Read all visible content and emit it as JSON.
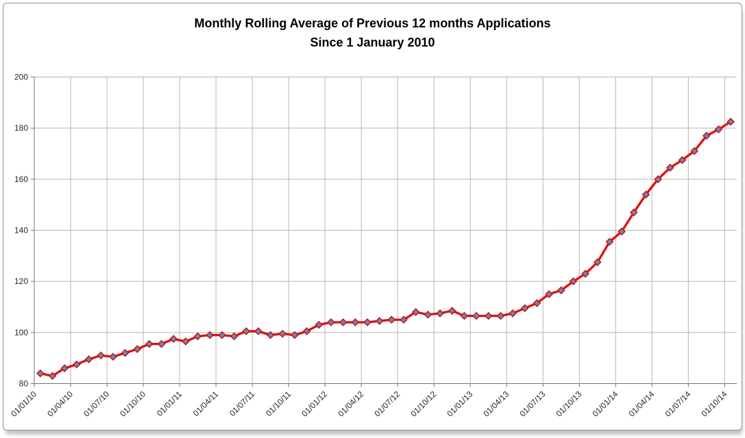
{
  "chart_data": {
    "type": "line",
    "title_line1": "Monthly Rolling Average of Previous 12 months Applications",
    "title_line2": "Since 1 January 2010",
    "categories": [
      "01/01/10",
      "01/02/10",
      "01/03/10",
      "01/04/10",
      "01/05/10",
      "01/06/10",
      "01/07/10",
      "01/08/10",
      "01/09/10",
      "01/10/10",
      "01/11/10",
      "01/12/10",
      "01/01/11",
      "01/02/11",
      "01/03/11",
      "01/04/11",
      "01/05/11",
      "01/06/11",
      "01/07/11",
      "01/08/11",
      "01/09/11",
      "01/10/11",
      "01/11/11",
      "01/12/11",
      "01/01/12",
      "01/02/12",
      "01/03/12",
      "01/04/12",
      "01/05/12",
      "01/06/12",
      "01/07/12",
      "01/08/12",
      "01/09/12",
      "01/10/12",
      "01/11/12",
      "01/12/12",
      "01/01/13",
      "01/02/13",
      "01/03/13",
      "01/04/13",
      "01/05/13",
      "01/06/13",
      "01/07/13",
      "01/08/13",
      "01/09/13",
      "01/10/13",
      "01/11/13",
      "01/12/13",
      "01/01/14",
      "01/02/14",
      "01/03/14",
      "01/04/14",
      "01/05/14",
      "01/06/14",
      "01/07/14",
      "01/08/14",
      "01/09/14",
      "01/10/14"
    ],
    "values": [
      84,
      83,
      86,
      87.5,
      89.5,
      91,
      90.5,
      92,
      93.5,
      95.5,
      95.5,
      97.5,
      96.5,
      98.5,
      99,
      99,
      98.5,
      100.5,
      100.5,
      99,
      99.5,
      99,
      100.5,
      103,
      104,
      104,
      104,
      104,
      104.5,
      105,
      105,
      108,
      107,
      107.5,
      108.5,
      106.5,
      106.5,
      106.5,
      106.5,
      107.5,
      109.5,
      111.5,
      115,
      116.5,
      120,
      123,
      127.5,
      135.5,
      139.5,
      147,
      154,
      160,
      164.5,
      167.5,
      171,
      177,
      179.5,
      182.5
    ],
    "x_axis": {
      "tick_labels": [
        "01/01/10",
        "01/04/10",
        "01/07/10",
        "01/10/10",
        "01/01/11",
        "01/04/11",
        "01/07/11",
        "01/10/11",
        "01/01/12",
        "01/04/12",
        "01/07/12",
        "01/10/12",
        "01/01/13",
        "01/04/13",
        "01/07/13",
        "01/10/13",
        "01/01/14",
        "01/04/14",
        "01/07/14",
        "01/10/14"
      ],
      "tick_every_months": 3,
      "label_rotation_deg": 45
    },
    "y_axis": {
      "ticks": [
        80,
        100,
        120,
        140,
        160,
        180,
        200
      ],
      "ylim": [
        80,
        200
      ]
    },
    "grid": true,
    "legend": "none",
    "colors": {
      "line": "#dc1414",
      "marker_fill": "#7384ae",
      "marker_stroke": "#c01616",
      "gridline": "#b5b5b5",
      "axis": "#707070",
      "tick_text": "#262626",
      "title_text": "#000000",
      "frame_border": "#8f8f8f"
    },
    "marker_shape": "diamond"
  }
}
